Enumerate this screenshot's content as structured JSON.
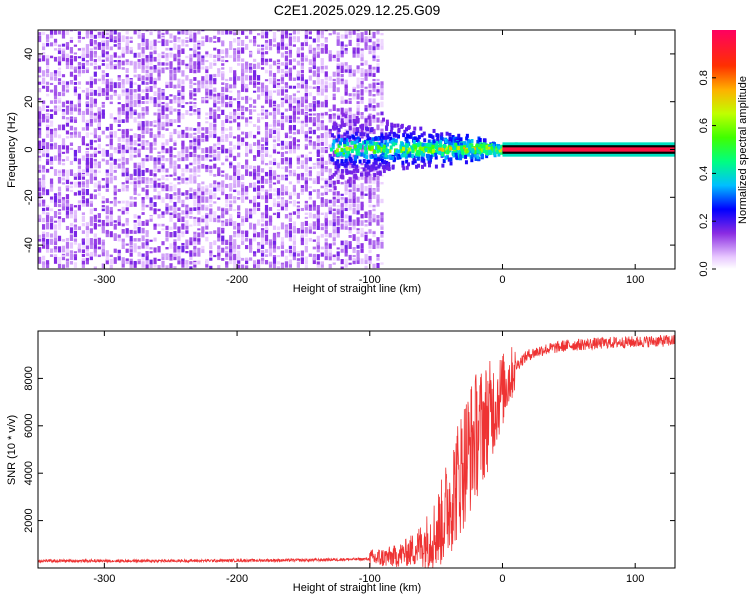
{
  "title": "C2E1.2025.029.12.25.G09",
  "chart_data": [
    {
      "type": "heatmap",
      "xlabel": "Height of straight line (km)",
      "ylabel": "Frequency (Hz)",
      "xlim": [
        -350,
        130
      ],
      "ylim": [
        -50,
        50
      ],
      "xticks": [
        -300,
        -200,
        -100,
        0,
        100
      ],
      "yticks": [
        -40,
        -20,
        0,
        20,
        40
      ],
      "colorbar": {
        "label": "Normalized spectral amplitude",
        "range": [
          0,
          1
        ],
        "ticks": [
          0.0,
          0.2,
          0.4,
          0.6,
          0.8
        ]
      },
      "description_values": {
        "noise_region_x": [
          -350,
          -90
        ],
        "signal_transition_x": [
          -130,
          10
        ],
        "carrier_line_x": [
          0,
          130
        ],
        "carrier_frequency": 0
      }
    },
    {
      "type": "line",
      "xlabel": "Height of straight line (km)",
      "ylabel": "SNR (10 * v/v)",
      "xlim": [
        -350,
        130
      ],
      "ylim": [
        0,
        10000
      ],
      "xticks": [
        -300,
        -200,
        -100,
        0,
        100
      ],
      "yticks": [
        2000,
        4000,
        6000,
        8000
      ],
      "color": "#ee3333",
      "profile": [
        [
          -350,
          300
        ],
        [
          -250,
          300
        ],
        [
          -150,
          330
        ],
        [
          -100,
          380
        ],
        [
          -80,
          500
        ],
        [
          -70,
          700
        ],
        [
          -60,
          1000
        ],
        [
          -50,
          1500
        ],
        [
          -45,
          2000
        ],
        [
          -40,
          2800
        ],
        [
          -35,
          3500
        ],
        [
          -30,
          4300
        ],
        [
          -25,
          5000
        ],
        [
          -20,
          5600
        ],
        [
          -15,
          6000
        ],
        [
          -10,
          6500
        ],
        [
          -5,
          7000
        ],
        [
          0,
          7500
        ],
        [
          5,
          8000
        ],
        [
          10,
          8500
        ],
        [
          15,
          8800
        ],
        [
          20,
          9000
        ],
        [
          30,
          9200
        ],
        [
          50,
          9400
        ],
        [
          80,
          9500
        ],
        [
          130,
          9600
        ]
      ]
    }
  ]
}
